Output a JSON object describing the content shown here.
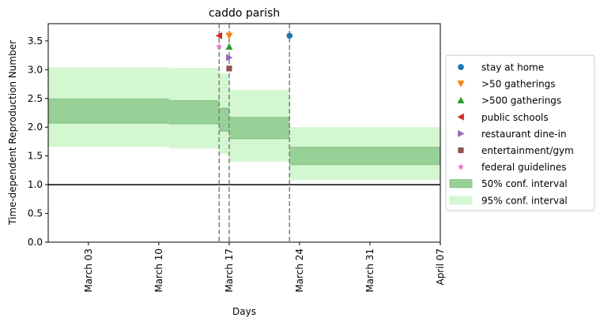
{
  "chart_data": {
    "type": "area",
    "title": "caddo parish",
    "xlabel": "Days",
    "ylabel": "Time-dependent Reproduction Number",
    "xlim": [
      "2020-02-28",
      "2020-04-07"
    ],
    "ylim": [
      0,
      3.8
    ],
    "yticks": [
      0.0,
      0.5,
      1.0,
      1.5,
      2.0,
      2.5,
      3.0,
      3.5
    ],
    "ytick_labels": [
      "0.0",
      "0.5",
      "1.0",
      "1.5",
      "2.0",
      "2.5",
      "3.0",
      "3.5"
    ],
    "xticks": [
      "2020-03-03",
      "2020-03-10",
      "2020-03-17",
      "2020-03-24",
      "2020-03-31",
      "2020-04-07"
    ],
    "xtick_labels": [
      "March 03",
      "March 10",
      "March 17",
      "March 24",
      "March 31",
      "April 07"
    ],
    "reference_line": 1.0,
    "grid": false,
    "legend_position": "right",
    "intervals": [
      {
        "start": "2020-02-28",
        "end": "2020-03-11",
        "ci50": [
          2.07,
          2.49
        ],
        "ci95": [
          1.66,
          3.04
        ]
      },
      {
        "start": "2020-03-11",
        "end": "2020-03-16",
        "ci50": [
          2.06,
          2.46
        ],
        "ci95": [
          1.63,
          3.03
        ]
      },
      {
        "start": "2020-03-16",
        "end": "2020-03-17",
        "ci50": [
          1.93,
          2.33
        ],
        "ci95": [
          1.53,
          2.93
        ]
      },
      {
        "start": "2020-03-17",
        "end": "2020-03-23",
        "ci50": [
          1.8,
          2.17
        ],
        "ci95": [
          1.4,
          2.65
        ]
      },
      {
        "start": "2020-03-23",
        "end": "2020-04-07",
        "ci50": [
          1.35,
          1.65
        ],
        "ci95": [
          1.08,
          2.0
        ]
      }
    ],
    "vlines": [
      "2020-03-16",
      "2020-03-17",
      "2020-03-23"
    ],
    "events": [
      {
        "name": "stay at home",
        "date": "2020-03-23",
        "y": 3.59,
        "marker": "circle",
        "color": "#1f77b4"
      },
      {
        "name": ">50 gatherings",
        "date": "2020-03-17",
        "y": 3.59,
        "marker": "triangle-down",
        "color": "#ff7f0e"
      },
      {
        "name": ">500 gatherings",
        "date": "2020-03-17",
        "y": 3.4,
        "marker": "triangle-up",
        "color": "#2ca02c"
      },
      {
        "name": "public schools",
        "date": "2020-03-16",
        "y": 3.59,
        "marker": "triangle-left",
        "color": "#d62728"
      },
      {
        "name": "restaurant dine-in",
        "date": "2020-03-17",
        "y": 3.21,
        "marker": "triangle-right",
        "color": "#9467bd"
      },
      {
        "name": "entertainment/gym",
        "date": "2020-03-17",
        "y": 3.02,
        "marker": "square",
        "color": "#8c564b"
      },
      {
        "name": "federal guidelines",
        "date": "2020-03-16",
        "y": 3.4,
        "marker": "star",
        "color": "#e377c2"
      }
    ],
    "legend": [
      {
        "label": "stay at home",
        "marker": "circle",
        "color": "#1f77b4"
      },
      {
        "label": ">50 gatherings",
        "marker": "triangle-down",
        "color": "#ff7f0e"
      },
      {
        "label": ">500 gatherings",
        "marker": "triangle-up",
        "color": "#2ca02c"
      },
      {
        "label": "public schools",
        "marker": "triangle-left",
        "color": "#d62728"
      },
      {
        "label": "restaurant dine-in",
        "marker": "triangle-right",
        "color": "#9467bd"
      },
      {
        "label": "entertainment/gym",
        "marker": "square",
        "color": "#8c564b"
      },
      {
        "label": "federal guidelines",
        "marker": "star",
        "color": "#e377c2"
      },
      {
        "label": "50% conf. interval",
        "marker": "patch",
        "color": "#98d197"
      },
      {
        "label": "95% conf. interval",
        "marker": "patch",
        "color": "#d3f7d1"
      }
    ],
    "colors": {
      "ci50": "#98d197",
      "ci50_edge": "#7fbf7e",
      "ci95": "#d3f7d1",
      "vline": "#7f7f7f"
    }
  }
}
